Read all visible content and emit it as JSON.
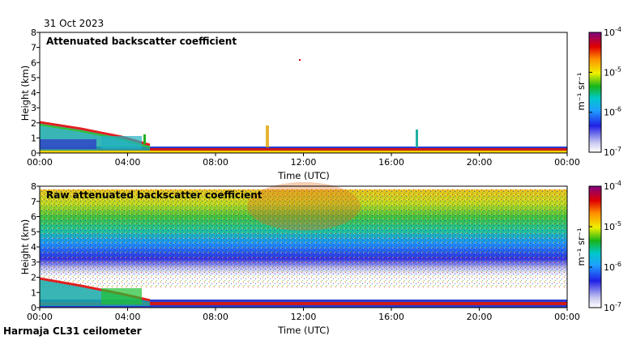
{
  "date": "31 Oct 2023",
  "footer": "Harmaja CL31 ceilometer",
  "chart_data": [
    {
      "type": "heatmap",
      "title": "Attenuated backscatter coefficient",
      "xlabel": "Time (UTC)",
      "ylabel": "Height (km)",
      "xticks": [
        "00:00",
        "04:00",
        "08:00",
        "12:00",
        "16:00",
        "20:00",
        "00:00"
      ],
      "xlim_hours": [
        0,
        24
      ],
      "yticks": [
        0,
        1,
        2,
        3,
        4,
        5,
        6,
        7,
        8
      ],
      "ylim_km": [
        0,
        8
      ],
      "colorbar": {
        "scale": "log",
        "range": [
          1e-07,
          0.0001
        ],
        "tick_exponents": [
          "-4",
          "-5",
          "-6",
          "-7"
        ],
        "tick_values": [
          -4,
          -5,
          -6,
          -7
        ],
        "unit_label": "m⁻¹ sr⁻¹"
      },
      "features": [
        {
          "name": "boundary layer",
          "height_km": [
            0.0,
            0.3
          ],
          "hours": [
            0,
            24
          ]
        },
        {
          "name": "aerosol layer",
          "top_km_start": 2.0,
          "top_km_end": 1.0,
          "hours": [
            0,
            5
          ]
        }
      ]
    },
    {
      "type": "heatmap",
      "title": "Raw attenuated backscatter coefficient",
      "xlabel": "Time (UTC)",
      "ylabel": "Height (km)",
      "xticks": [
        "00:00",
        "04:00",
        "08:00",
        "12:00",
        "16:00",
        "20:00",
        "00:00"
      ],
      "xlim_hours": [
        0,
        24
      ],
      "yticks": [
        0,
        1,
        2,
        3,
        4,
        5,
        6,
        7,
        8
      ],
      "ylim_km": [
        0,
        8
      ],
      "colorbar": {
        "scale": "log",
        "range": [
          1e-07,
          0.0001
        ],
        "tick_exponents": [
          "-4",
          "-5",
          "-6",
          "-7"
        ],
        "tick_values": [
          -4,
          -5,
          -6,
          -7
        ],
        "unit_label": "m⁻¹ sr⁻¹"
      },
      "features": [
        {
          "name": "noise field",
          "height_km": [
            0.5,
            7.7
          ],
          "hours": [
            0,
            24
          ]
        },
        {
          "name": "aerosol layer",
          "top_km_start": 2.0,
          "top_km_end": 1.0,
          "hours": [
            0,
            5
          ]
        }
      ]
    }
  ]
}
